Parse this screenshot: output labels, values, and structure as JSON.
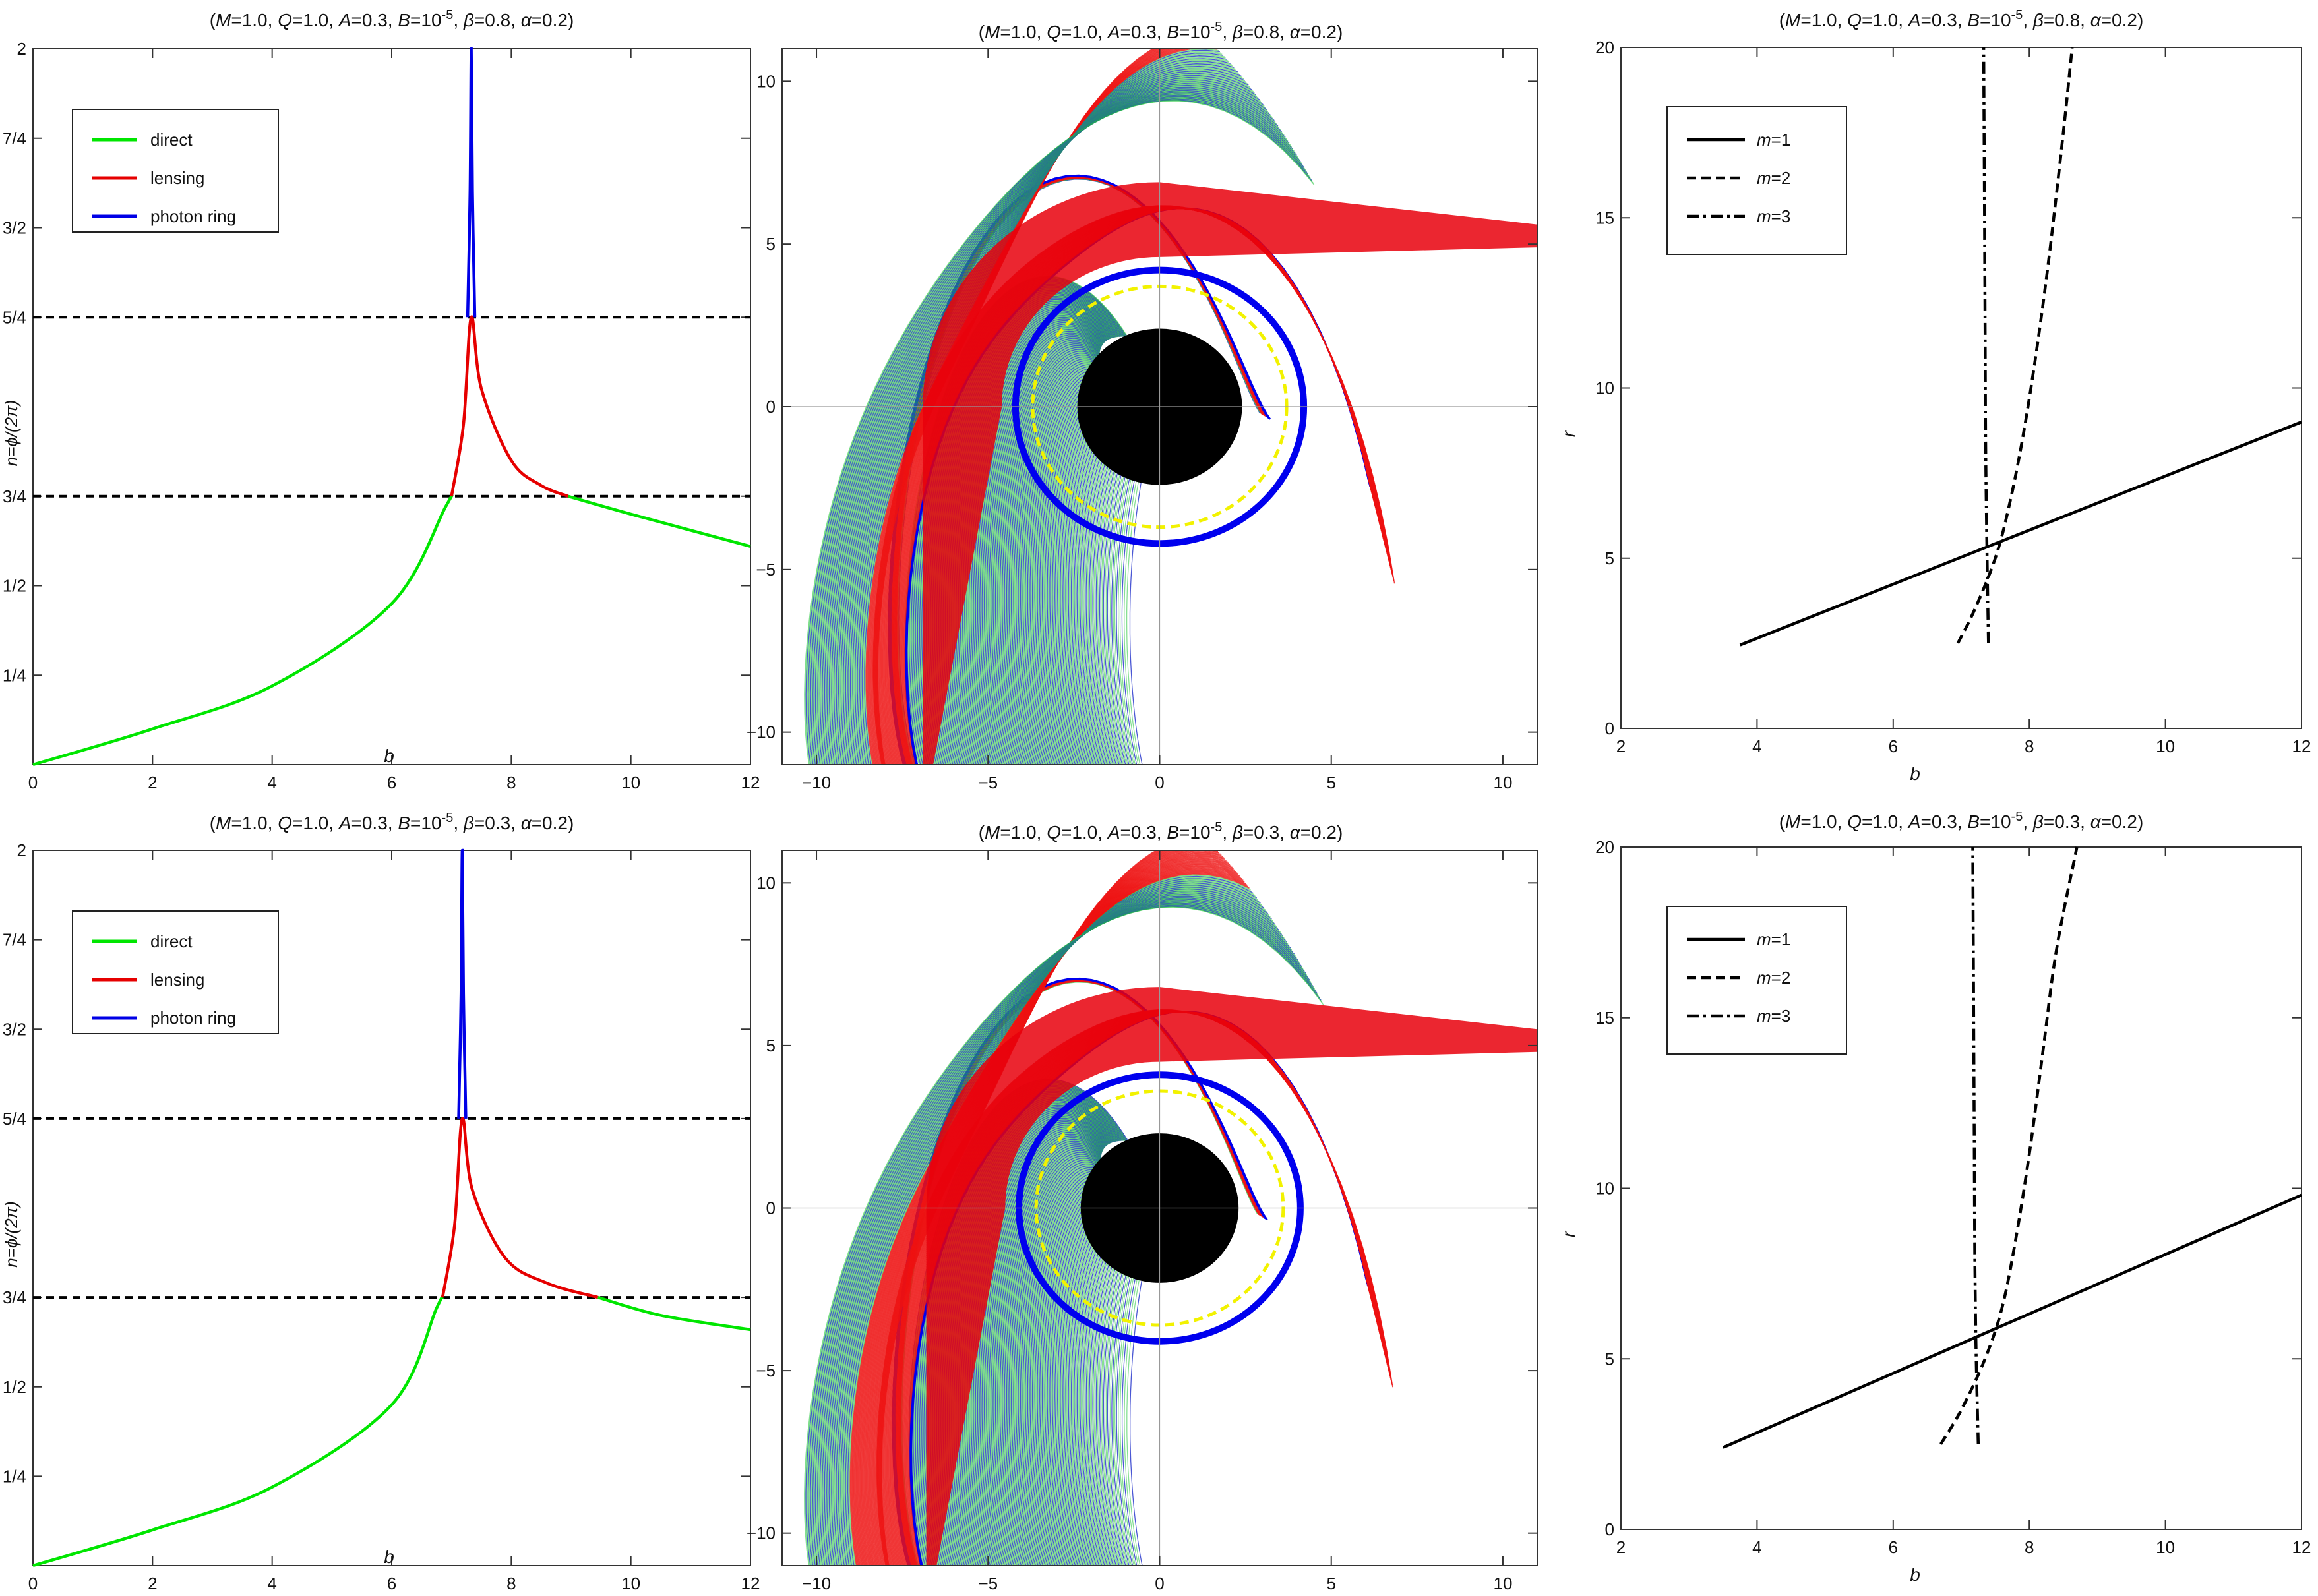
{
  "figure": "Black hole photon trajectories: orbit number n, ray tracing, and transfer functions",
  "chart_data": [
    {
      "id": "top-left",
      "type": "line",
      "title": "(M=1.0, Q=1.0, A=0.3, B=10^-5, β=0.8, α=0.2)",
      "title_parts": {
        "M": "1.0",
        "Q": "1.0",
        "A": "0.3",
        "B_exp": "-5",
        "beta": "0.8",
        "alpha": "0.2"
      },
      "xlabel": "b",
      "ylabel": "n=ϕ/(2π)",
      "xlim": [
        0,
        12
      ],
      "ylim": [
        0,
        2
      ],
      "xticks": [
        0,
        2,
        4,
        6,
        8,
        10,
        12
      ],
      "yticks": [
        {
          "value": 0.25,
          "label": "1/4"
        },
        {
          "value": 0.5,
          "label": "1/2"
        },
        {
          "value": 0.75,
          "label": "3/4"
        },
        {
          "value": 1.25,
          "label": "5/4"
        },
        {
          "value": 1.5,
          "label": "3/2"
        },
        {
          "value": 1.75,
          "label": "7/4"
        },
        {
          "value": 2,
          "label": "2"
        }
      ],
      "reference_lines": [
        0.75,
        1.25
      ],
      "b_critical": 7.33,
      "series": [
        {
          "name": "direct",
          "color": "#00e600",
          "x": [
            0,
            2,
            4,
            6,
            6.9,
            7.0
          ],
          "y": [
            0,
            0.1,
            0.22,
            0.45,
            0.72,
            0.75
          ]
        },
        {
          "name": "lensing",
          "color": "#e60000",
          "x": [
            7.0,
            7.2,
            7.33,
            7.5,
            8.0,
            8.5,
            8.95
          ],
          "y": [
            0.75,
            0.95,
            1.25,
            1.05,
            0.85,
            0.78,
            0.75
          ]
        },
        {
          "name": "photon ring",
          "color": "#0000e6",
          "x": [
            7.27,
            7.31,
            7.33,
            7.35,
            7.39
          ],
          "y": [
            1.25,
            1.6,
            2.0,
            1.6,
            1.25
          ]
        },
        {
          "name": "direct",
          "color": "#00e600",
          "x": [
            8.95,
            10,
            12
          ],
          "y": [
            0.75,
            0.7,
            0.61
          ]
        }
      ],
      "legend": [
        "direct",
        "lensing",
        "photon ring"
      ],
      "legend_position": "top-left"
    },
    {
      "id": "top-middle",
      "type": "scatter",
      "title": "(M=1.0, Q=1.0, A=0.3, B=10^-5, β=0.8, α=0.2)",
      "title_parts": {
        "M": "1.0",
        "Q": "1.0",
        "A": "0.3",
        "B_exp": "-5",
        "beta": "0.8",
        "alpha": "0.2"
      },
      "xlim": [
        -11,
        11
      ],
      "ylim": [
        -11,
        11
      ],
      "xticks": [
        -10,
        -5,
        0,
        5,
        10
      ],
      "yticks": [
        -10,
        -5,
        0,
        5,
        10
      ],
      "horizon_radius": 2.4,
      "photon_sphere_radius": 3.7,
      "b_critical": 7.33,
      "direct_b_max": 7.0,
      "lensing_b_max": 8.95,
      "description_series": [
        "direct (green)",
        "lensing (red)",
        "photon ring (blue)",
        "photon sphere (yellow dashed)",
        "event horizon (black disk)"
      ]
    },
    {
      "id": "top-right",
      "type": "line",
      "title": "(M=1.0, Q=1.0, A=0.3, B=10^-5, β=0.8, α=0.2)",
      "title_parts": {
        "M": "1.0",
        "Q": "1.0",
        "A": "0.3",
        "B_exp": "-5",
        "beta": "0.8",
        "alpha": "0.2"
      },
      "xlabel": "b",
      "ylabel": "r",
      "xlim": [
        2,
        12
      ],
      "ylim": [
        0,
        20
      ],
      "xticks": [
        2,
        4,
        6,
        8,
        10,
        12
      ],
      "yticks": [
        0,
        5,
        10,
        15,
        20
      ],
      "series": [
        {
          "name": "m=1",
          "style": "solid",
          "x": [
            3.75,
            12
          ],
          "y": [
            2.45,
            9.0
          ]
        },
        {
          "name": "m=2",
          "style": "dashed",
          "x": [
            6.95,
            7.2,
            7.5,
            7.7,
            7.9,
            8.1,
            8.3,
            8.5,
            8.63
          ],
          "y": [
            2.5,
            3.5,
            5.0,
            6.5,
            8.5,
            11.0,
            14.0,
            17.5,
            20.0
          ]
        },
        {
          "name": "m=3",
          "style": "dashdot",
          "x": [
            7.4,
            7.38,
            7.36,
            7.35,
            7.34,
            7.33
          ],
          "y": [
            2.5,
            5.0,
            8.0,
            12.0,
            16.0,
            20.0
          ]
        }
      ],
      "legend": [
        "m=1",
        "m=2",
        "m=3"
      ],
      "legend_position": "top-left"
    },
    {
      "id": "bottom-left",
      "type": "line",
      "title": "(M=1.0, Q=1.0, A=0.3, B=10^-5, β=0.3, α=0.2)",
      "title_parts": {
        "M": "1.0",
        "Q": "1.0",
        "A": "0.3",
        "B_exp": "-5",
        "beta": "0.3",
        "alpha": "0.2"
      },
      "xlabel": "b",
      "ylabel": "n=ϕ/(2π)",
      "xlim": [
        0,
        12
      ],
      "ylim": [
        0,
        2
      ],
      "xticks": [
        0,
        2,
        4,
        6,
        8,
        10,
        12
      ],
      "yticks": [
        {
          "value": 0.25,
          "label": "1/4"
        },
        {
          "value": 0.5,
          "label": "1/2"
        },
        {
          "value": 0.75,
          "label": "3/4"
        },
        {
          "value": 1.25,
          "label": "5/4"
        },
        {
          "value": 1.5,
          "label": "3/2"
        },
        {
          "value": 1.75,
          "label": "7/4"
        },
        {
          "value": 2,
          "label": "2"
        }
      ],
      "reference_lines": [
        0.75,
        1.25
      ],
      "b_critical": 7.18,
      "series": [
        {
          "name": "direct",
          "color": "#00e600",
          "x": [
            0,
            2,
            4,
            6,
            6.75,
            6.85
          ],
          "y": [
            0,
            0.1,
            0.22,
            0.45,
            0.72,
            0.75
          ]
        },
        {
          "name": "lensing",
          "color": "#e60000",
          "x": [
            6.85,
            7.05,
            7.18,
            7.35,
            7.9,
            8.6,
            9.45
          ],
          "y": [
            0.75,
            0.95,
            1.25,
            1.05,
            0.86,
            0.79,
            0.75
          ]
        },
        {
          "name": "photon ring",
          "color": "#0000e6",
          "x": [
            7.12,
            7.16,
            7.18,
            7.2,
            7.24
          ],
          "y": [
            1.25,
            1.6,
            2.0,
            1.6,
            1.25
          ]
        },
        {
          "name": "direct",
          "color": "#00e600",
          "x": [
            9.45,
            10.5,
            12
          ],
          "y": [
            0.75,
            0.7,
            0.66
          ]
        }
      ],
      "legend": [
        "direct",
        "lensing",
        "photon ring"
      ],
      "legend_position": "top-left"
    },
    {
      "id": "bottom-middle",
      "type": "scatter",
      "title": "(M=1.0, Q=1.0, A=0.3, B=10^-5, β=0.3, α=0.2)",
      "title_parts": {
        "M": "1.0",
        "Q": "1.0",
        "A": "0.3",
        "B_exp": "-5",
        "beta": "0.3",
        "alpha": "0.2"
      },
      "xlim": [
        -11,
        11
      ],
      "ylim": [
        -11,
        11
      ],
      "xticks": [
        -10,
        -5,
        0,
        5,
        10
      ],
      "yticks": [
        -10,
        -5,
        0,
        5,
        10
      ],
      "horizon_radius": 2.3,
      "photon_sphere_radius": 3.6,
      "b_critical": 7.18,
      "direct_b_max": 6.85,
      "lensing_b_max": 9.45,
      "description_series": [
        "direct (green)",
        "lensing (red)",
        "photon ring (blue)",
        "photon sphere (yellow dashed)",
        "event horizon (black disk)"
      ]
    },
    {
      "id": "bottom-right",
      "type": "line",
      "title": "(M=1.0, Q=1.0, A=0.3, B=10^-5, β=0.3, α=0.2)",
      "title_parts": {
        "M": "1.0",
        "Q": "1.0",
        "A": "0.3",
        "B_exp": "-5",
        "beta": "0.3",
        "alpha": "0.2"
      },
      "xlabel": "b",
      "ylabel": "r",
      "xlim": [
        2,
        12
      ],
      "ylim": [
        0,
        20
      ],
      "xticks": [
        2,
        4,
        6,
        8,
        10,
        12
      ],
      "yticks": [
        0,
        5,
        10,
        15,
        20
      ],
      "series": [
        {
          "name": "m=1",
          "style": "solid",
          "x": [
            3.5,
            12
          ],
          "y": [
            2.4,
            9.8
          ]
        },
        {
          "name": "m=2",
          "style": "dashed",
          "x": [
            6.7,
            7.0,
            7.35,
            7.6,
            7.8,
            8.0,
            8.2,
            8.4,
            8.7
          ],
          "y": [
            2.5,
            3.5,
            5.0,
            6.5,
            8.5,
            11.0,
            14.0,
            17.0,
            20.0
          ]
        },
        {
          "name": "m=3",
          "style": "dashdot",
          "x": [
            7.25,
            7.22,
            7.2,
            7.19,
            7.18,
            7.17
          ],
          "y": [
            2.5,
            5.0,
            8.0,
            12.0,
            16.0,
            20.0
          ]
        }
      ],
      "legend": [
        "m=1",
        "m=2",
        "m=3"
      ],
      "legend_position": "top-left"
    }
  ]
}
